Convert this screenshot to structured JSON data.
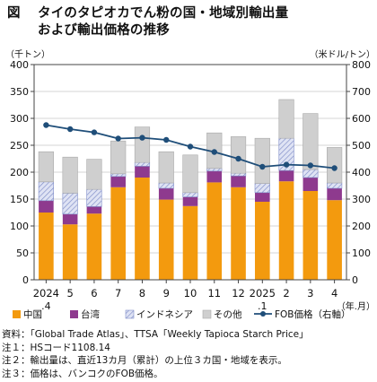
{
  "figure": {
    "label": "図",
    "title_line1": "タイのタピオカでん粉の国・地域別輸出量",
    "title_line2": "および輸出価格の推移"
  },
  "notes": [
    "資料：「Global Trade Atlas」、TTSA「Weekly Tapioca Starch Price」",
    "注１：HSコード1108.14",
    "注２：輸出量は、直近13カ月（累計）の上位３カ国・地域を表示。",
    "注３：価格は、バンコクのFOB価格。"
  ],
  "colors": {
    "china": "#f39a0e",
    "taiwan": "#8e3a8e",
    "indonesia_fill": "#dfe3f4",
    "indonesia_hatch": "#7e8cc8",
    "other": "#cfcfcf",
    "fob_line": "#1f4e79",
    "frame": "#444444"
  },
  "chart_data": {
    "type": "bar",
    "stacked": true,
    "categories": [
      "2024\n.4",
      "5",
      "6",
      "7",
      "8",
      "9",
      "10",
      "11",
      "12",
      "2025\n.1",
      "2",
      "3",
      "4"
    ],
    "x_axis_unit": "（年.月）",
    "y_left": {
      "unit": "（千トン）",
      "range": [
        0,
        400
      ],
      "ticks": [
        0,
        50,
        100,
        150,
        200,
        250,
        300,
        350,
        400
      ]
    },
    "y_right": {
      "unit": "（米ドル/トン）",
      "range": [
        0,
        800
      ],
      "ticks": [
        0,
        100,
        200,
        300,
        400,
        500,
        600,
        700,
        800
      ]
    },
    "series": [
      {
        "name": "中国",
        "axis": "left",
        "values": [
          125,
          103,
          123,
          172,
          190,
          149,
          137,
          181,
          172,
          145,
          183,
          165,
          148
        ]
      },
      {
        "name": "台湾",
        "axis": "left",
        "values": [
          22,
          19,
          13,
          20,
          21,
          21,
          17,
          21,
          21,
          17,
          20,
          25,
          22
        ]
      },
      {
        "name": "インドネシア",
        "axis": "left",
        "values": [
          35,
          39,
          32,
          5,
          7,
          10,
          8,
          5,
          5,
          17,
          60,
          15,
          10
        ]
      },
      {
        "name": "その他",
        "axis": "left",
        "values": [
          56,
          67,
          56,
          61,
          66,
          58,
          70,
          66,
          68,
          84,
          72,
          104,
          66
        ]
      },
      {
        "name": "FOB価格（右軸）",
        "axis": "right",
        "type": "line",
        "values": [
          575,
          560,
          548,
          525,
          528,
          520,
          495,
          475,
          450,
          420,
          428,
          425,
          415
        ]
      }
    ]
  }
}
